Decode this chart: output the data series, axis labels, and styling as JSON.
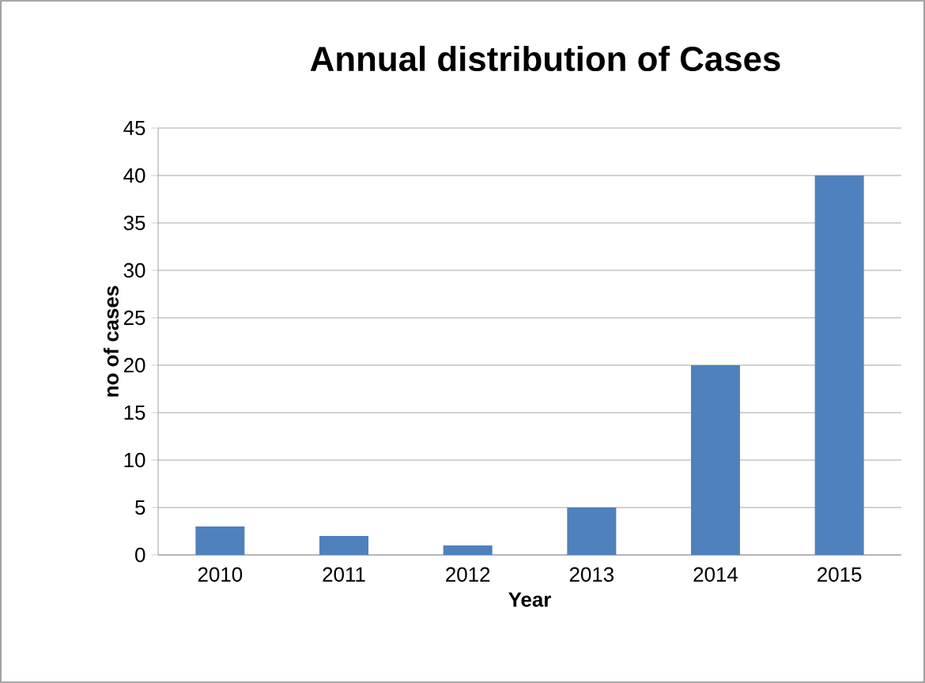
{
  "chart_data": {
    "type": "bar",
    "title": "Annual distribution of Cases",
    "xlabel": "Year",
    "ylabel": "no of cases",
    "categories": [
      "2010",
      "2011",
      "2012",
      "2013",
      "2014",
      "2015"
    ],
    "values": [
      3,
      2,
      1,
      5,
      20,
      40
    ],
    "color": "#4f81bd",
    "ylim": [
      0,
      45
    ],
    "yticks": [
      0,
      5,
      10,
      15,
      20,
      25,
      30,
      35,
      40,
      45
    ],
    "grid": "y"
  }
}
